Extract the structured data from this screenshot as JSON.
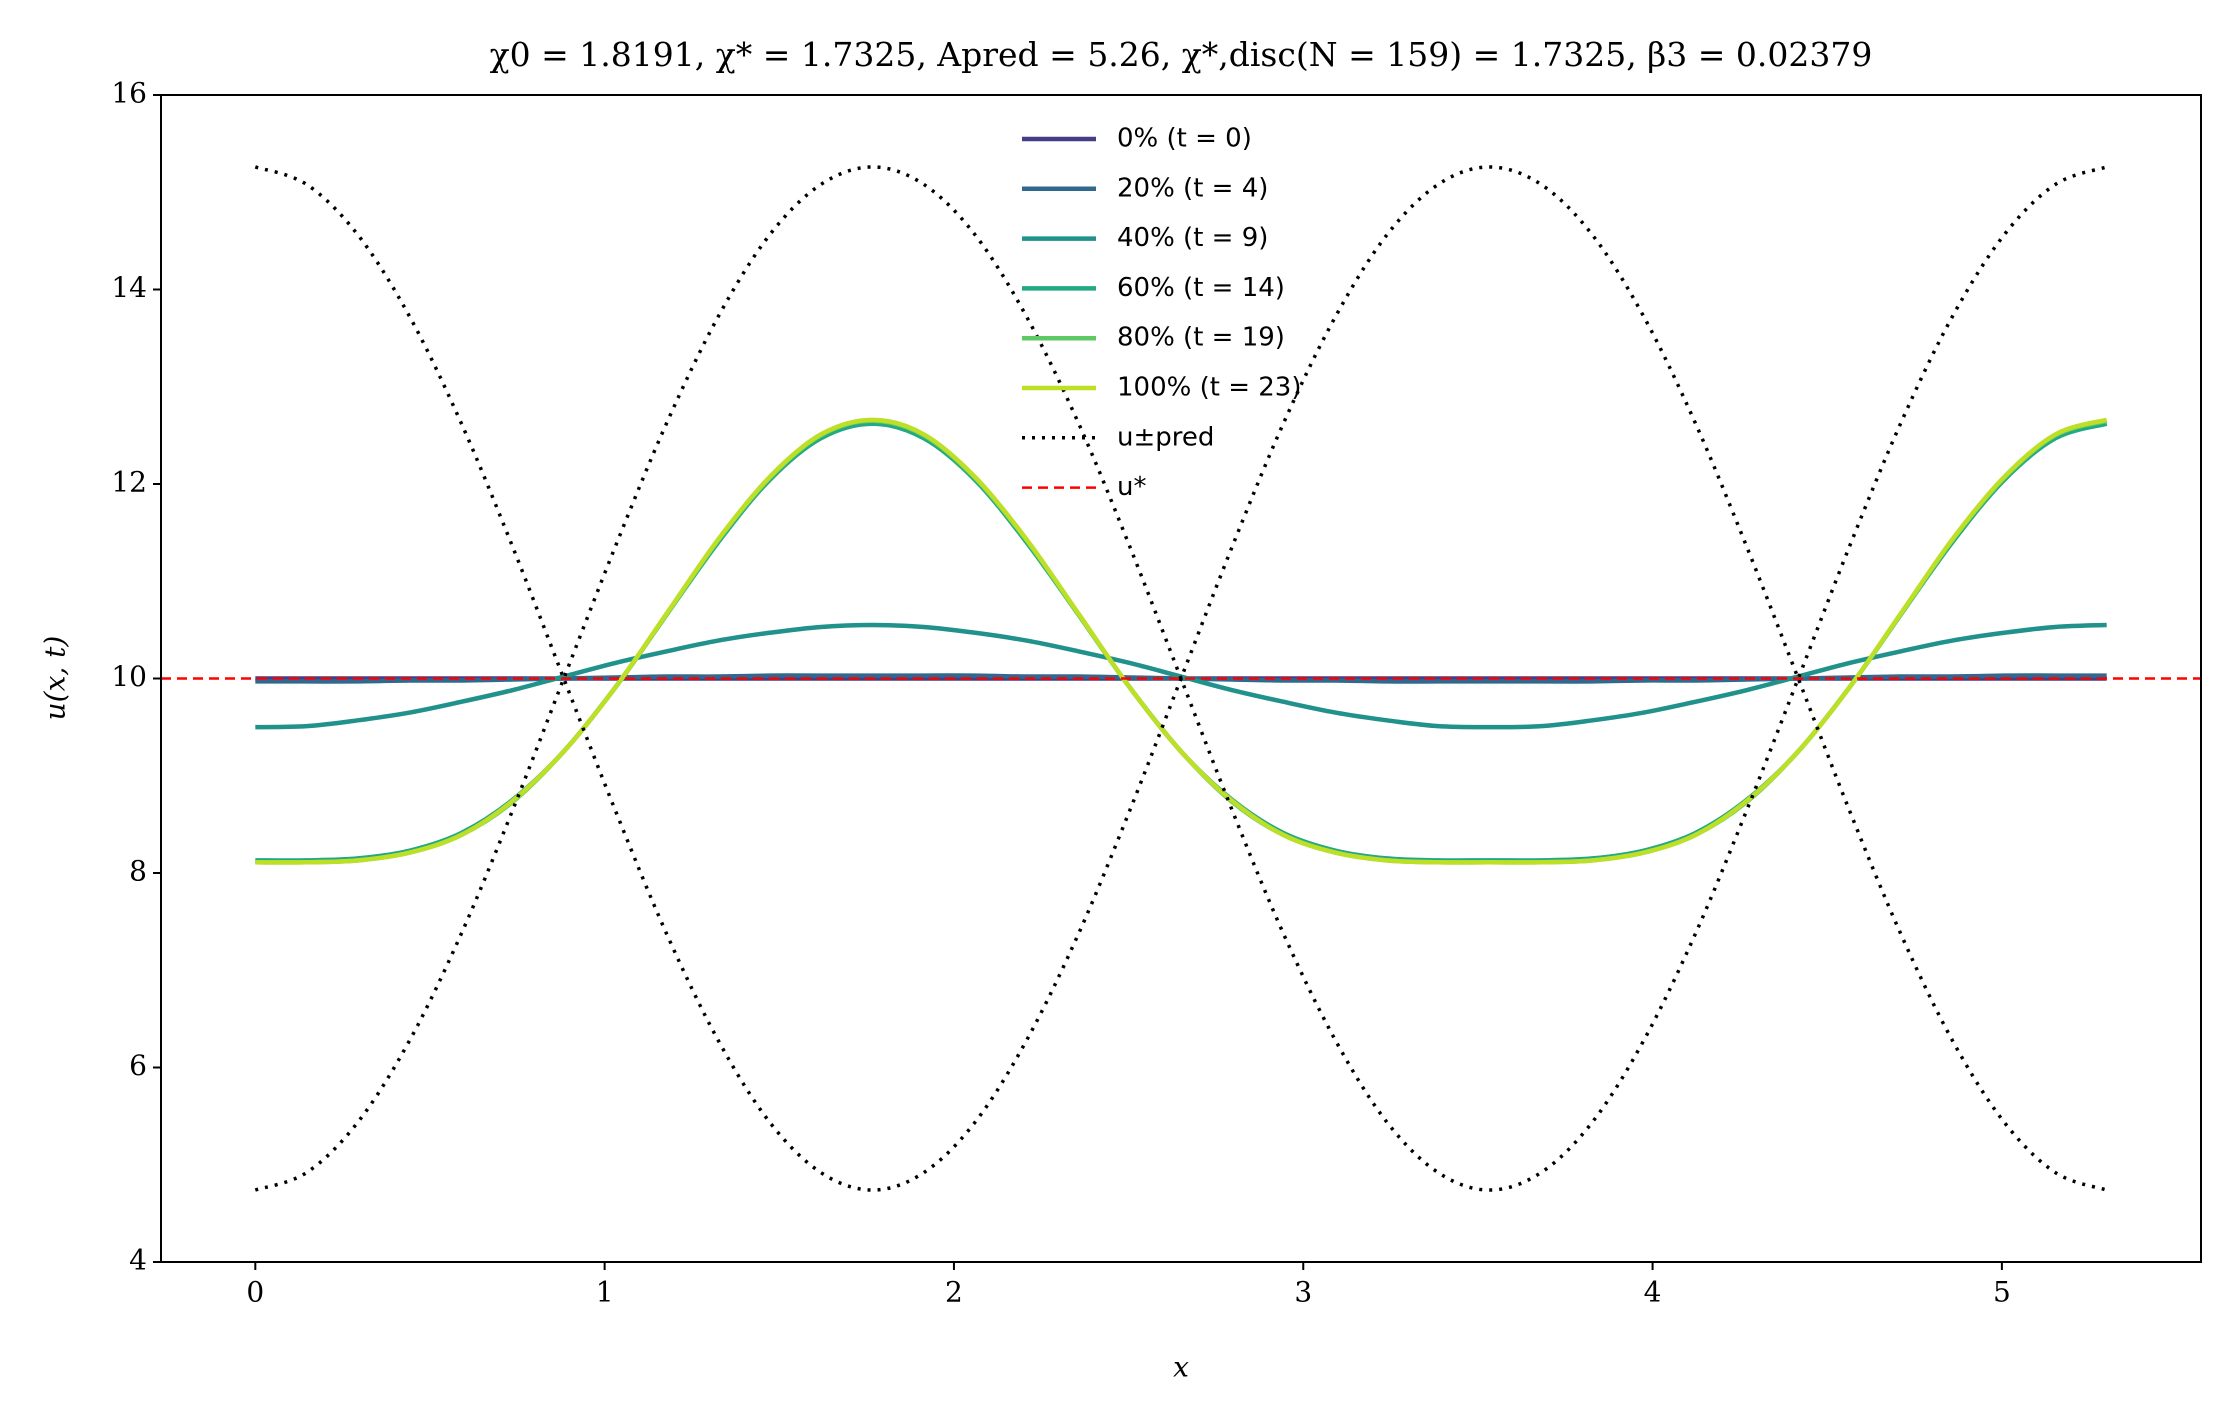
{
  "chart_data": {
    "type": "line",
    "title": "χ0 = 1.8191,  χ* = 1.7325,  Apred = 5.26,  χ*,disc(N = 159) = 1.7325,  β3 = 0.02379",
    "xlabel": "x",
    "ylabel": "u(x, t)",
    "xlim": [
      -0.27,
      5.57
    ],
    "ylim": [
      4,
      16
    ],
    "xticks": [
      0,
      1,
      2,
      3,
      4,
      5
    ],
    "yticks": [
      4,
      6,
      8,
      10,
      12,
      14,
      16
    ],
    "grid": false,
    "legend": "upper center",
    "x": [
      0,
      0.147,
      0.294,
      0.442,
      0.589,
      0.736,
      0.883,
      1.031,
      1.178,
      1.325,
      1.472,
      1.619,
      1.767,
      1.914,
      2.061,
      2.208,
      2.356,
      2.503,
      2.65,
      2.797,
      2.944,
      3.092,
      3.239,
      3.386,
      3.533,
      3.681,
      3.828,
      3.975,
      4.122,
      4.269,
      4.417,
      4.564,
      4.711,
      4.858,
      5.006,
      5.153,
      5.3
    ],
    "series": [
      {
        "name": "0% (t = 0)",
        "color": "#433e85",
        "style": "solid",
        "values": [
          10,
          10,
          10,
          10,
          10,
          10,
          10,
          10,
          10,
          10,
          10,
          10,
          10,
          10,
          10,
          10,
          10,
          10,
          10,
          10,
          10,
          10,
          10,
          10,
          10,
          10,
          10,
          10,
          10,
          10,
          10,
          10,
          10,
          10,
          10,
          10,
          10
        ]
      },
      {
        "name": "20% (t = 4)",
        "color": "#31688e",
        "style": "solid",
        "values": [
          9.97,
          9.97,
          9.97,
          9.98,
          9.98,
          9.99,
          10,
          10.01,
          10.02,
          10.02,
          10.03,
          10.03,
          10.03,
          10.03,
          10.03,
          10.02,
          10.02,
          10.01,
          10,
          9.99,
          9.98,
          9.98,
          9.97,
          9.97,
          9.97,
          9.97,
          9.97,
          9.98,
          9.98,
          9.99,
          10,
          10.01,
          10.02,
          10.02,
          10.03,
          10.03,
          10.03
        ]
      },
      {
        "name": "40% (t = 9)",
        "color": "#21918c",
        "style": "solid",
        "values": [
          9.5,
          9.51,
          9.57,
          9.65,
          9.76,
          9.88,
          10.02,
          10.16,
          10.28,
          10.39,
          10.47,
          10.53,
          10.55,
          10.53,
          10.47,
          10.39,
          10.28,
          10.16,
          10.02,
          9.88,
          9.76,
          9.65,
          9.57,
          9.51,
          9.5,
          9.51,
          9.57,
          9.65,
          9.76,
          9.88,
          10.02,
          10.16,
          10.28,
          10.39,
          10.47,
          10.53,
          10.55
        ]
      },
      {
        "name": "60% (t = 14)",
        "color": "#22a884",
        "style": "solid",
        "values": [
          8.13,
          8.13,
          8.15,
          8.23,
          8.41,
          8.75,
          9.25,
          9.91,
          10.66,
          11.4,
          12.04,
          12.47,
          12.62,
          12.47,
          12.04,
          11.4,
          10.66,
          9.91,
          9.25,
          8.75,
          8.41,
          8.23,
          8.15,
          8.13,
          8.13,
          8.13,
          8.15,
          8.23,
          8.41,
          8.75,
          9.25,
          9.91,
          10.66,
          11.4,
          12.04,
          12.47,
          12.62
        ]
      },
      {
        "name": "80% (t = 19)",
        "color": "#5ec962",
        "style": "solid",
        "values": [
          8.11,
          8.11,
          8.13,
          8.21,
          8.39,
          8.73,
          9.25,
          9.91,
          10.66,
          11.42,
          12.06,
          12.5,
          12.65,
          12.5,
          12.06,
          11.42,
          10.66,
          9.91,
          9.25,
          8.73,
          8.39,
          8.21,
          8.13,
          8.11,
          8.11,
          8.11,
          8.13,
          8.21,
          8.39,
          8.73,
          9.25,
          9.91,
          10.66,
          11.42,
          12.06,
          12.5,
          12.65
        ]
      },
      {
        "name": "100% (t = 23)",
        "color": "#bddf26",
        "style": "solid",
        "values": [
          8.11,
          8.11,
          8.13,
          8.21,
          8.39,
          8.74,
          9.25,
          9.91,
          10.67,
          11.43,
          12.07,
          12.51,
          12.66,
          12.51,
          12.07,
          11.43,
          10.67,
          9.91,
          9.25,
          8.74,
          8.39,
          8.21,
          8.13,
          8.11,
          8.11,
          8.11,
          8.13,
          8.21,
          8.39,
          8.74,
          9.25,
          9.91,
          10.67,
          11.43,
          12.07,
          12.51,
          12.66
        ]
      },
      {
        "name": "u±pred",
        "color": "#000000",
        "style": "dotted",
        "values": [
          15.26,
          15.08,
          14.56,
          13.72,
          12.63,
          11.36,
          10,
          8.64,
          7.37,
          6.28,
          5.44,
          4.92,
          4.74,
          4.92,
          5.44,
          6.28,
          7.37,
          8.64,
          10,
          11.36,
          12.63,
          13.72,
          14.56,
          15.08,
          15.26,
          15.08,
          14.56,
          13.72,
          12.63,
          11.36,
          10,
          8.64,
          7.37,
          6.28,
          5.44,
          4.92,
          4.74
        ]
      },
      {
        "name": null,
        "color": "#000000",
        "style": "dotted",
        "values": [
          4.74,
          4.92,
          5.44,
          6.28,
          7.37,
          8.64,
          10,
          11.36,
          12.63,
          13.72,
          14.56,
          15.08,
          15.26,
          15.08,
          14.56,
          13.72,
          12.63,
          11.36,
          10,
          8.64,
          7.37,
          6.28,
          5.44,
          4.92,
          4.74,
          4.92,
          5.44,
          6.28,
          7.37,
          8.64,
          10,
          11.36,
          12.63,
          13.72,
          14.56,
          15.08,
          15.26
        ]
      }
    ],
    "hlines": [
      {
        "name": "u*",
        "value": 10,
        "color": "#ff0000",
        "style": "dashed"
      }
    ]
  }
}
